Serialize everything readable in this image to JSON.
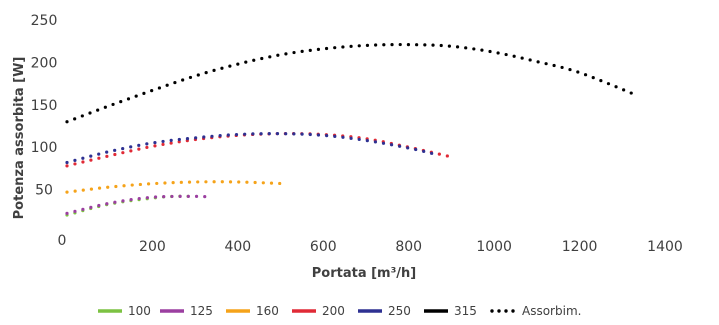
{
  "chart_data": {
    "type": "scatter",
    "xlabel": "Portata [m³/h]",
    "ylabel": "Potenza assorbita [W]",
    "xlim": [
      0,
      1400
    ],
    "ylim": [
      0,
      250
    ],
    "x_ticks": [
      0,
      200,
      400,
      600,
      800,
      1000,
      1200,
      1400
    ],
    "y_ticks": [
      50,
      100,
      150,
      200,
      250
    ],
    "y_tick_labels": [
      "50",
      "100",
      "150",
      "200",
      "250"
    ],
    "x_tick_labels": [
      "0",
      "200",
      "400",
      "600",
      "800",
      "1000",
      "1200",
      "1400"
    ],
    "y_zero_label": "0",
    "grid": "none",
    "legend_position": "bottom",
    "series": [
      {
        "name": "100",
        "color": "#7cc242",
        "x": [
          0,
          100,
          200,
          250,
          300
        ],
        "y": [
          20,
          33,
          40,
          42,
          42
        ]
      },
      {
        "name": "125",
        "color": "#9b3fa0",
        "x": [
          0,
          100,
          200,
          300,
          340
        ],
        "y": [
          22,
          34,
          41,
          42,
          41
        ]
      },
      {
        "name": "160",
        "color": "#f5a31a",
        "x": [
          0,
          100,
          200,
          300,
          400,
          510
        ],
        "y": [
          47,
          53,
          57,
          59,
          59,
          57
        ]
      },
      {
        "name": "200",
        "color": "#e02a36",
        "x": [
          0,
          100,
          200,
          300,
          400,
          500,
          600,
          700,
          800,
          905
        ],
        "y": [
          78,
          90,
          101,
          109,
          114,
          116,
          115,
          110,
          100,
          88
        ]
      },
      {
        "name": "250",
        "color": "#2e3192",
        "x": [
          0,
          100,
          200,
          300,
          400,
          500,
          600,
          700,
          800,
          860
        ],
        "y": [
          82,
          95,
          105,
          111,
          115,
          116,
          114,
          108,
          99,
          92
        ]
      },
      {
        "name": "315",
        "color": "#000000",
        "x": [
          0,
          100,
          200,
          300,
          400,
          500,
          600,
          700,
          800,
          900,
          1000,
          1100,
          1200,
          1330
        ],
        "y": [
          130,
          149,
          167,
          184,
          198,
          209,
          216,
          220,
          221,
          219,
          212,
          201,
          188,
          162
        ]
      }
    ],
    "legend": [
      {
        "label": "100",
        "color": "#7cc242",
        "style": "line"
      },
      {
        "label": "125",
        "color": "#9b3fa0",
        "style": "line"
      },
      {
        "label": "160",
        "color": "#f5a31a",
        "style": "line"
      },
      {
        "label": "200",
        "color": "#e02a36",
        "style": "line"
      },
      {
        "label": "250",
        "color": "#2e3192",
        "style": "line"
      },
      {
        "label": "315",
        "color": "#000000",
        "style": "line"
      },
      {
        "label": "Assorbim.",
        "color": "#000000",
        "style": "dots"
      }
    ]
  }
}
